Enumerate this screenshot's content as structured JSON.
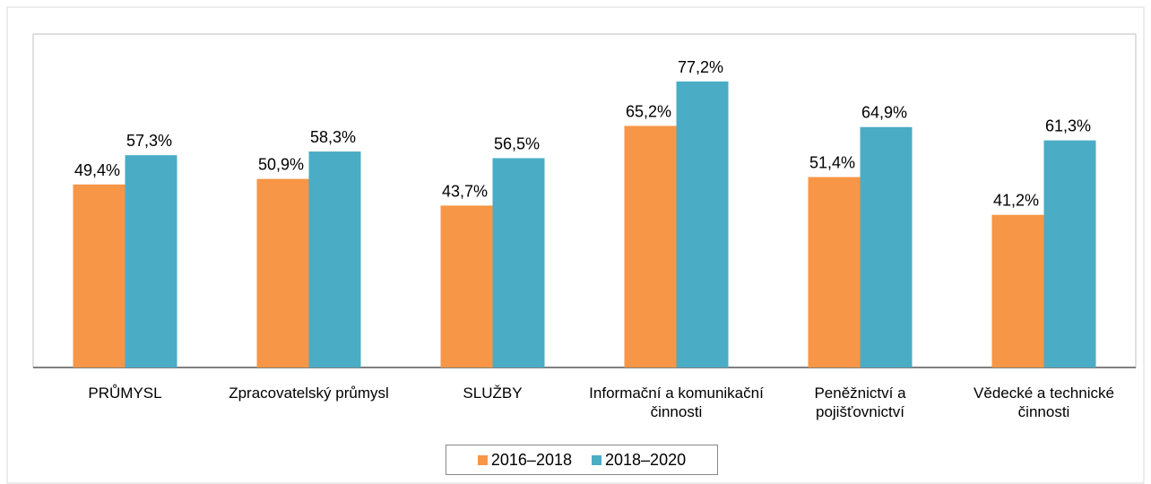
{
  "chart_data": {
    "type": "bar",
    "categories": [
      "PRŮMYSL",
      "Zpracovatelský průmysl",
      "SLUŽBY",
      "Informační a komunikační činnosti",
      "Peněžnictví a pojišťovnictví",
      "Vědecké a technické činnosti"
    ],
    "series": [
      {
        "name": "2016–2018",
        "color": "#f79646",
        "values": [
          49.4,
          50.9,
          43.7,
          65.2,
          51.4,
          41.2
        ],
        "value_labels": [
          "49,4%",
          "50,9%",
          "43,7%",
          "65,2%",
          "51,4%",
          "41,2%"
        ]
      },
      {
        "name": "2018–2020",
        "color": "#4bacc6",
        "values": [
          57.3,
          58.3,
          56.5,
          77.2,
          64.9,
          61.3
        ],
        "value_labels": [
          "57,3%",
          "58,3%",
          "56,5%",
          "77,2%",
          "64,9%",
          "61,3%"
        ]
      }
    ],
    "ylim": [
      0,
      90
    ],
    "legend": "bottom"
  }
}
